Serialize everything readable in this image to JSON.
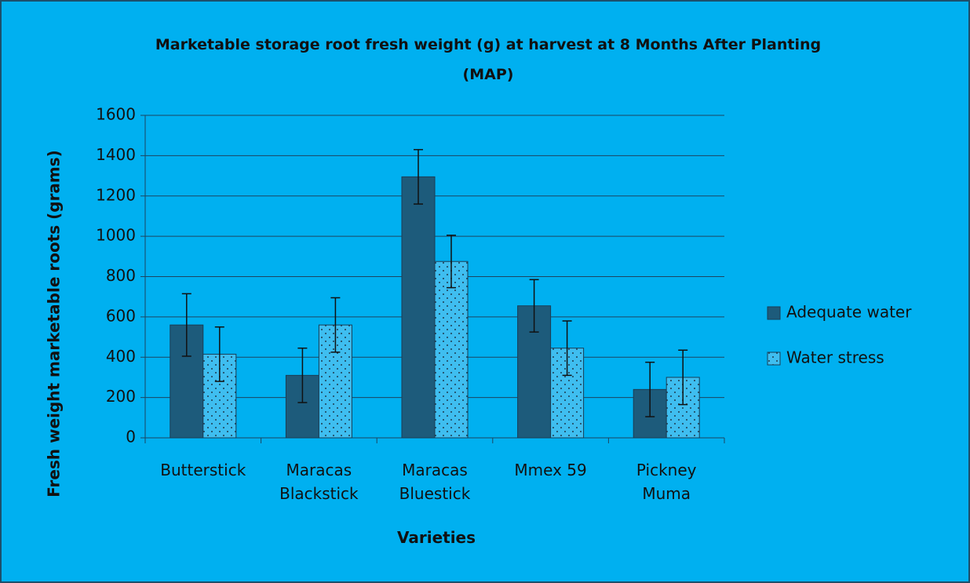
{
  "chart_data": {
    "type": "bar",
    "title": "Marketable storage root fresh weight (g) at harvest at 8 Months After Planting (MAP)",
    "x_label": "Varieties",
    "y_label": "Fresh weight marketable roots (grams)",
    "categories": [
      "Butterstick",
      "Maracas Blackstick",
      "Maracas Bluestick",
      "Mmex 59",
      "Pickney Muma"
    ],
    "series": [
      {
        "name": "Adequate water",
        "color": "#1d5b7b",
        "pattern": "solid",
        "values": [
          560,
          310,
          1295,
          655,
          240
        ],
        "errors": [
          155,
          135,
          135,
          130,
          135
        ]
      },
      {
        "name": "Water stress",
        "color": "#3fbef0",
        "pattern": "dots",
        "values": [
          415,
          560,
          875,
          445,
          300
        ],
        "errors": [
          135,
          135,
          130,
          135,
          135
        ]
      }
    ],
    "ylim": [
      0,
      1600
    ],
    "yticks": [
      0,
      200,
      400,
      600,
      800,
      1000,
      1200,
      1400,
      1600
    ],
    "grid": true,
    "legend": "right"
  }
}
